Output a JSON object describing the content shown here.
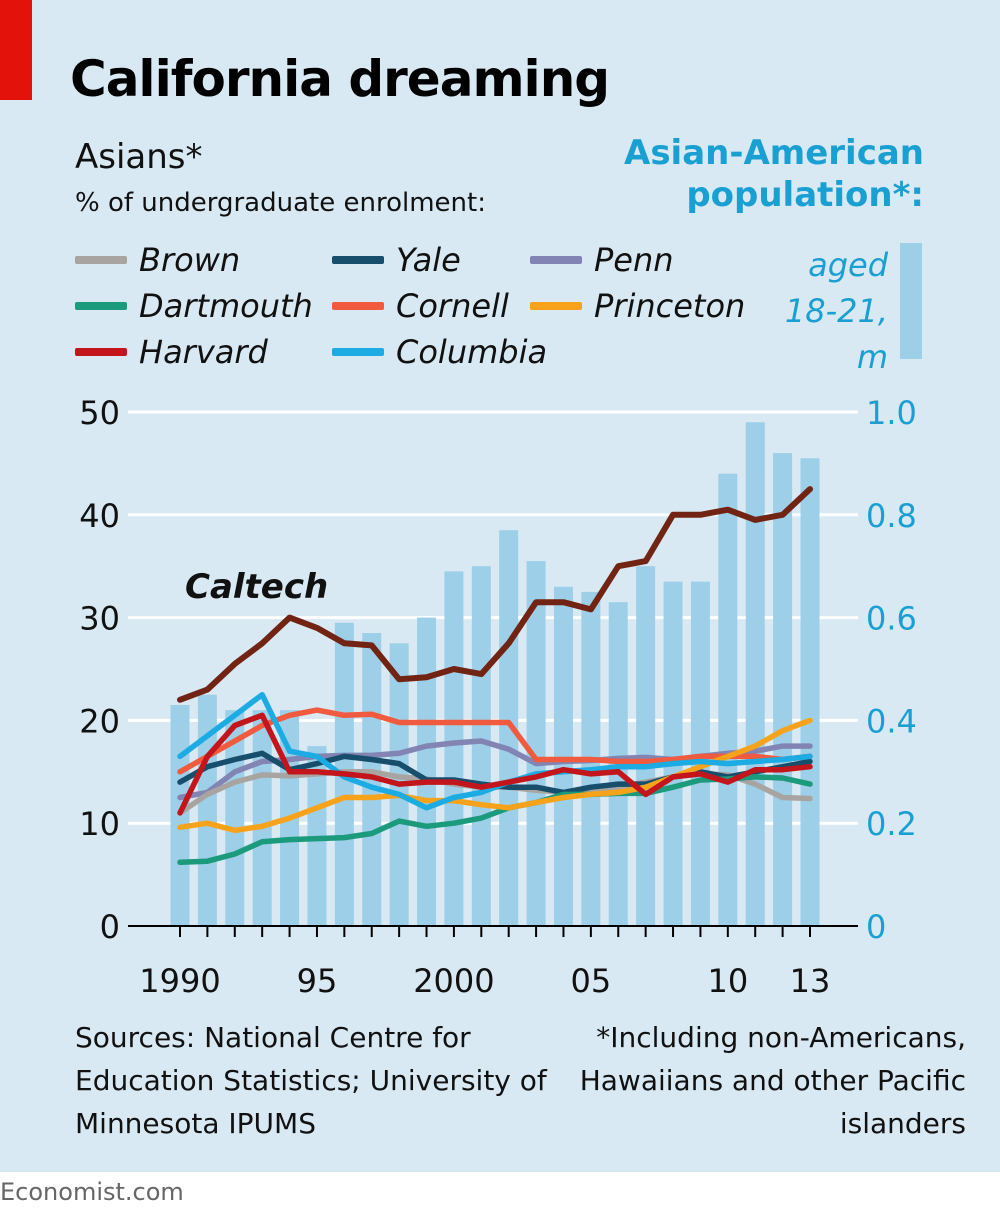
{
  "header": {
    "title": "California dreaming",
    "left_title": "Asians*",
    "left_subtitle": "% of undergraduate enrolment:",
    "right_title": "Asian-American population*:",
    "bar_legend": "aged 18-21, m"
  },
  "legend": [
    {
      "name": "Brown",
      "color": "#a8a4a1"
    },
    {
      "name": "Dartmouth",
      "color": "#1c9a7c"
    },
    {
      "name": "Harvard",
      "color": "#c3161c"
    },
    {
      "name": "Yale",
      "color": "#174e6c"
    },
    {
      "name": "Cornell",
      "color": "#f05a3e"
    },
    {
      "name": "Columbia",
      "color": "#1cabe2"
    },
    {
      "name": "Penn",
      "color": "#8285b3"
    },
    {
      "name": "Princeton",
      "color": "#f7a21b"
    }
  ],
  "chart_data": {
    "type": "line",
    "x": [
      1990,
      1991,
      1992,
      1993,
      1994,
      1995,
      1996,
      1997,
      1998,
      1999,
      2000,
      2001,
      2002,
      2003,
      2004,
      2005,
      2006,
      2007,
      2008,
      2009,
      2010,
      2011,
      2012,
      2013
    ],
    "x_ticks": [
      1990,
      1995,
      2000,
      2005,
      2010,
      2013
    ],
    "x_tick_labels": [
      "1990",
      "95",
      "2000",
      "05",
      "10",
      "13"
    ],
    "y_left_ticks": [
      0,
      10,
      20,
      30,
      40,
      50
    ],
    "y_left_tick_labels": [
      "0",
      "10",
      "20",
      "30",
      "40",
      "50"
    ],
    "y_left_lim": [
      0,
      50
    ],
    "y_right_ticks": [
      0,
      0.2,
      0.4,
      0.6,
      0.8,
      1.0
    ],
    "y_right_tick_labels": [
      "0",
      "0.2",
      "0.4",
      "0.6",
      "0.8",
      "1.0"
    ],
    "y_right_lim": [
      0,
      1.0
    ],
    "grid": true,
    "bars": {
      "axis": "right",
      "color": "#9dcfe8",
      "values": [
        0.43,
        0.45,
        0.42,
        0.42,
        0.42,
        0.35,
        0.59,
        0.57,
        0.55,
        0.6,
        0.69,
        0.7,
        0.77,
        0.71,
        0.66,
        0.65,
        0.63,
        0.7,
        0.67,
        0.67,
        0.88,
        0.98,
        0.92,
        0.91
      ]
    },
    "series": [
      {
        "name": "Caltech",
        "color": "#722414",
        "values": [
          22,
          23,
          25.5,
          27.5,
          30,
          29,
          27.5,
          27.3,
          24,
          24.2,
          25,
          24.5,
          27.5,
          31.5,
          31.5,
          30.8,
          35,
          35.5,
          40,
          40,
          40.5,
          39.5,
          40,
          42.5
        ]
      },
      {
        "name": "Penn",
        "color": "#8285b3",
        "values": [
          12.5,
          13,
          15,
          16,
          16.2,
          16.5,
          16.6,
          16.6,
          16.8,
          17.5,
          17.8,
          18,
          17.2,
          15.8,
          16,
          16.1,
          16.3,
          16.4,
          16.2,
          16.5,
          16.8,
          17,
          17.5,
          17.5
        ]
      },
      {
        "name": "Cornell",
        "color": "#f05a3e",
        "values": [
          15,
          16.5,
          18,
          19.5,
          20.5,
          21,
          20.5,
          20.6,
          19.8,
          19.8,
          19.8,
          19.8,
          19.8,
          16.2,
          16.2,
          16.2,
          16,
          16,
          16.2,
          16.5,
          16.5,
          16.5,
          16.2,
          16.5
        ]
      },
      {
        "name": "Brown",
        "color": "#a8a4a1",
        "values": [
          11,
          12.8,
          14,
          14.7,
          14.6,
          14.8,
          15,
          15,
          14.5,
          14.3,
          13.8,
          13.5,
          13.5,
          13.2,
          13,
          13.2,
          13.5,
          14,
          14.5,
          14.8,
          14.7,
          13.8,
          12.5,
          12.4
        ]
      },
      {
        "name": "Yale",
        "color": "#174e6c",
        "values": [
          14,
          15.5,
          16.2,
          16.8,
          15.2,
          15.8,
          16.5,
          16.2,
          15.8,
          14.2,
          14.2,
          13.8,
          13.5,
          13.5,
          13,
          13.5,
          13.8,
          13.8,
          14.5,
          15,
          14.5,
          15,
          15.5,
          16
        ]
      },
      {
        "name": "Dartmouth",
        "color": "#1c9a7c",
        "values": [
          6.2,
          6.3,
          7,
          8.2,
          8.4,
          8.5,
          8.6,
          9,
          10.2,
          9.7,
          10,
          10.5,
          11.5,
          12,
          12.8,
          12.8,
          12.9,
          12.9,
          13.5,
          14.2,
          14.3,
          14.5,
          14.4,
          13.8
        ]
      },
      {
        "name": "Princeton",
        "color": "#f7a21b",
        "values": [
          9.6,
          10,
          9.3,
          9.7,
          10.5,
          11.5,
          12.5,
          12.5,
          12.7,
          12.2,
          12.2,
          11.8,
          11.5,
          12,
          12.5,
          12.8,
          13,
          13.5,
          14.5,
          15.5,
          16.5,
          17.5,
          19,
          20
        ]
      },
      {
        "name": "Columbia",
        "color": "#1cabe2",
        "values": [
          16.5,
          18.5,
          20.5,
          22.5,
          17,
          16.5,
          14.5,
          13.5,
          12.8,
          11.5,
          12.5,
          13,
          14,
          14.8,
          15,
          15.2,
          15.5,
          15.5,
          15.8,
          16,
          15.8,
          16,
          16.2,
          16.5
        ]
      },
      {
        "name": "Harvard",
        "color": "#c3161c",
        "values": [
          11,
          16.5,
          19.5,
          20.5,
          15,
          15,
          14.8,
          14.5,
          13.8,
          14,
          14,
          13.5,
          14,
          14.5,
          15.2,
          14.8,
          15,
          12.8,
          14.5,
          14.8,
          14,
          15.2,
          15.2,
          15.5
        ]
      }
    ],
    "annotations": [
      {
        "text": "Caltech"
      }
    ]
  },
  "footer": {
    "sources": "Sources: National Centre for Education Statistics; University of Minnesota IPUMS",
    "footnote": "*Including non-Americans, Hawaiians and other Pacific islanders",
    "credit": "Economist.com"
  }
}
